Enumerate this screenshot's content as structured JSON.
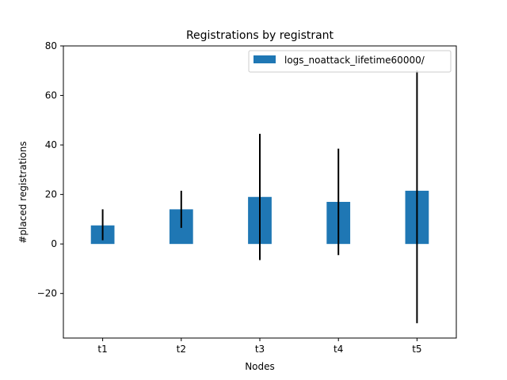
{
  "chart_data": {
    "type": "bar",
    "title": "Registrations by registrant",
    "xlabel": "Nodes",
    "ylabel": "#placed registrations",
    "categories": [
      "t1",
      "t2",
      "t3",
      "t4",
      "t5"
    ],
    "series": [
      {
        "name": "logs_noattack_lifetime60000/",
        "color": "#1f77b4",
        "values": [
          7.5,
          14.0,
          19.0,
          17.0,
          21.5
        ],
        "error_low": [
          1.5,
          6.5,
          -6.5,
          -4.5,
          -32.0
        ],
        "error_high": [
          14.0,
          21.5,
          44.5,
          38.5,
          70.0
        ]
      }
    ],
    "ylim": [
      -38,
      80
    ],
    "yticks": [
      -20,
      0,
      20,
      40,
      60,
      80
    ],
    "ytick_labels": [
      "−20",
      "0",
      "20",
      "40",
      "60",
      "80"
    ],
    "grid": false,
    "legend_position": "top-right"
  }
}
